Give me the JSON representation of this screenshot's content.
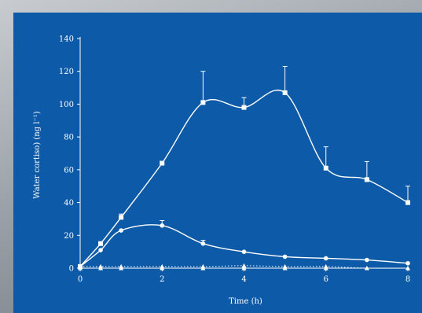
{
  "colors": {
    "panel": "#0d5aa8",
    "ink": "#ffffff"
  },
  "chart_data": {
    "type": "line",
    "title": "",
    "xlabel": "Time (h)",
    "ylabel": "Water cortiso) (ng l⁻¹)",
    "xlim": [
      0,
      8
    ],
    "ylim": [
      0,
      140
    ],
    "xticks": [
      0,
      2,
      4,
      6,
      8
    ],
    "yticks": [
      0,
      20,
      40,
      60,
      80,
      100,
      120,
      140
    ],
    "grid": false,
    "legend": "none",
    "series": [
      {
        "marker": "square",
        "style": "solid",
        "x": [
          0,
          0.5,
          1,
          2,
          3,
          4,
          5,
          6,
          7,
          8
        ],
        "y": [
          1,
          15,
          31,
          64,
          101,
          98,
          107,
          61,
          54,
          40
        ],
        "err": [
          0,
          0,
          2,
          0,
          19,
          6,
          16,
          13,
          11,
          10
        ]
      },
      {
        "marker": "circle",
        "style": "solid",
        "x": [
          0,
          0.5,
          1,
          2,
          3,
          4,
          5,
          6,
          7,
          8
        ],
        "y": [
          1,
          11,
          23,
          26,
          15,
          10,
          7,
          6,
          5,
          3
        ],
        "err": [
          0,
          0,
          0,
          3,
          2,
          0,
          0,
          0,
          0,
          0
        ]
      },
      {
        "marker": "triangle",
        "style": "dotted",
        "x": [
          0,
          0.5,
          1,
          2,
          3,
          4,
          5,
          6,
          7,
          8
        ],
        "y": [
          1,
          1,
          1,
          1,
          1,
          1.5,
          1,
          1,
          0,
          0
        ],
        "err": [
          0,
          0,
          0,
          0,
          0,
          0,
          0,
          0,
          0,
          0
        ]
      },
      {
        "marker": "triangle",
        "style": "dashed",
        "x": [
          0,
          0.5,
          1,
          2,
          3,
          4,
          5,
          6,
          7,
          8
        ],
        "y": [
          0,
          0,
          0,
          0,
          0,
          0,
          0,
          0,
          0,
          0
        ],
        "err": [
          0,
          0,
          0,
          0,
          0,
          0,
          0,
          0,
          0,
          0
        ]
      }
    ]
  }
}
